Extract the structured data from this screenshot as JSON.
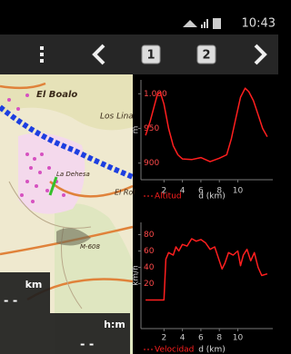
{
  "status_bar": {
    "time": "10:43"
  },
  "toolbar": {
    "page_1": "1",
    "page_2": "2"
  },
  "map": {
    "labels": [
      "El Boalo",
      "Los Lina",
      "El Rol",
      "La Dehesa",
      "M-608"
    ],
    "distance_unit": "km",
    "distance_value": "- -",
    "time_unit": "h:m",
    "time_value": "- -"
  },
  "chart_data": [
    {
      "type": "line",
      "y_label": "m",
      "x_label": "d (km)",
      "x": [
        0,
        0.5,
        1,
        1.3,
        1.6,
        2,
        2.5,
        3,
        3.5,
        4,
        5,
        6,
        7,
        8,
        8.8,
        9.3,
        9.8,
        10.3,
        10.8,
        11.2,
        11.7,
        12.2,
        12.7,
        13.2
      ],
      "series": [
        {
          "name": "Altitud",
          "color": "#ff1f1f",
          "values": [
            940,
            960,
            985,
            1000,
            1002,
            985,
            950,
            925,
            912,
            906,
            905,
            908,
            902,
            907,
            912,
            935,
            965,
            995,
            1008,
            1003,
            990,
            970,
            950,
            938
          ]
        }
      ],
      "xlim": [
        -0.5,
        13.8
      ],
      "ylim": [
        876,
        1020
      ],
      "xticks": [
        2,
        4,
        6,
        8,
        10
      ],
      "yticks": [
        {
          "value": 1000,
          "label": "1.000"
        },
        950,
        900
      ]
    },
    {
      "type": "line",
      "y_label": "km/h",
      "x_label": "d (km)",
      "x": [
        0,
        1,
        2,
        2.2,
        2.5,
        3,
        3.3,
        3.6,
        4,
        4.5,
        5,
        5.5,
        6,
        6.5,
        7,
        7.5,
        8,
        8.3,
        8.6,
        9,
        9.5,
        10,
        10.3,
        10.6,
        11,
        11.4,
        11.8,
        12.2,
        12.6,
        13.2
      ],
      "series": [
        {
          "name": "Velocidad",
          "color": "#ff1f1f",
          "values": [
            0,
            0,
            0,
            50,
            58,
            55,
            65,
            60,
            68,
            66,
            75,
            72,
            74,
            70,
            62,
            65,
            48,
            38,
            45,
            58,
            55,
            60,
            42,
            55,
            62,
            48,
            58,
            40,
            30,
            32
          ]
        }
      ],
      "xlim": [
        -0.5,
        13.8
      ],
      "ylim": [
        -35,
        95
      ],
      "xticks": [
        2,
        4,
        6,
        8,
        10
      ],
      "yticks": [
        80,
        60,
        40,
        20
      ]
    }
  ]
}
